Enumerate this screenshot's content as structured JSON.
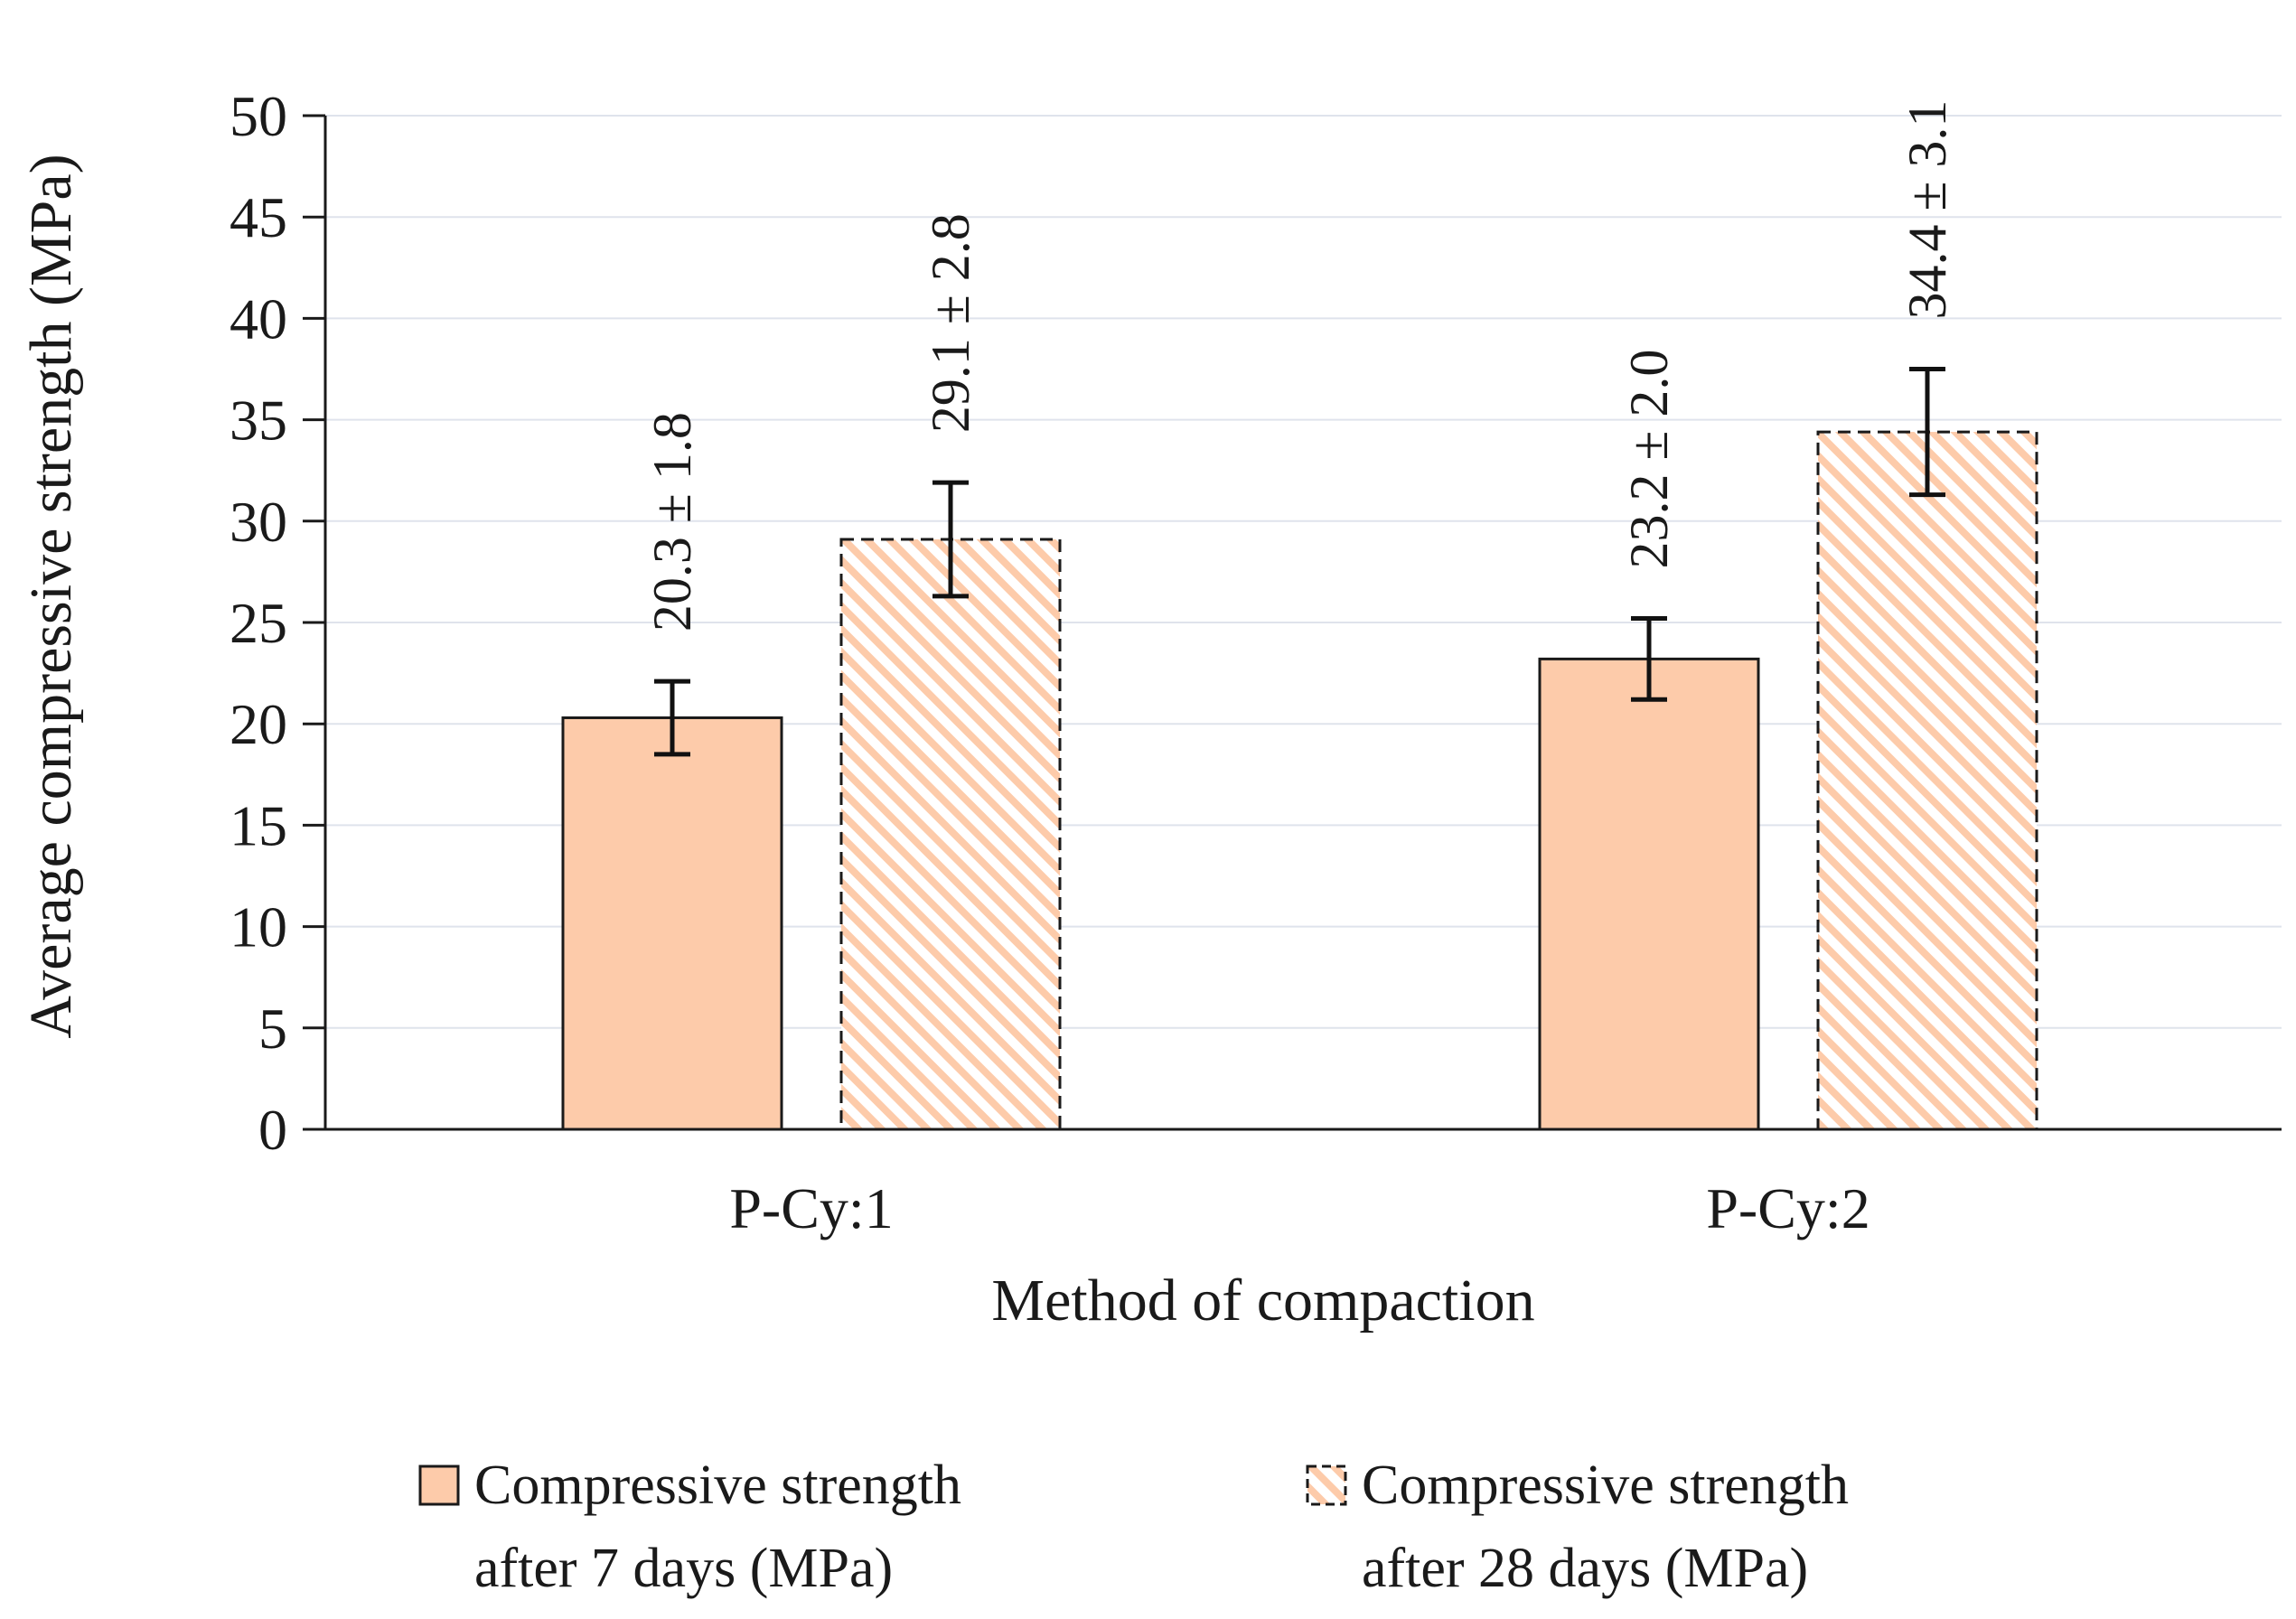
{
  "chart_data": {
    "type": "bar",
    "title": "",
    "xlabel": "Method of compaction",
    "ylabel": "Average compressive strength (MPa)",
    "ylim": [
      0,
      50
    ],
    "yticks": [
      0,
      5,
      10,
      15,
      20,
      25,
      30,
      35,
      40,
      45,
      50
    ],
    "ytick_labels": [
      "0",
      "5",
      "10",
      "15",
      "20",
      "25",
      "30",
      "35",
      "40",
      "45",
      "50"
    ],
    "grid": true,
    "categories": [
      "P-Cy:1",
      "P-Cy:2"
    ],
    "series": [
      {
        "name": "Compressive strength after 7 days (MPa)",
        "legend_lines": [
          "Compressive strength",
          "after 7 days (MPa)"
        ],
        "values": [
          20.3,
          23.2
        ],
        "errors": [
          1.8,
          2.0
        ],
        "labels": [
          "20.3 ± 1.8",
          "23.2 ± 2.0"
        ],
        "fill": "solid",
        "color": "#FDCBAA",
        "edge_color": "#1a1a1a"
      },
      {
        "name": "Compressive strength after 28 days (MPa)",
        "legend_lines": [
          "Compressive strength",
          "after 28 days (MPa)"
        ],
        "values": [
          29.1,
          34.4
        ],
        "errors": [
          2.8,
          3.1
        ],
        "labels": [
          "29.1 ± 2.8",
          "34.4 ± 3.1"
        ],
        "fill": "hatched",
        "color": "#FDCBAA",
        "edge_color": "#1a1a1a"
      }
    ],
    "legend_position": "bottom"
  }
}
